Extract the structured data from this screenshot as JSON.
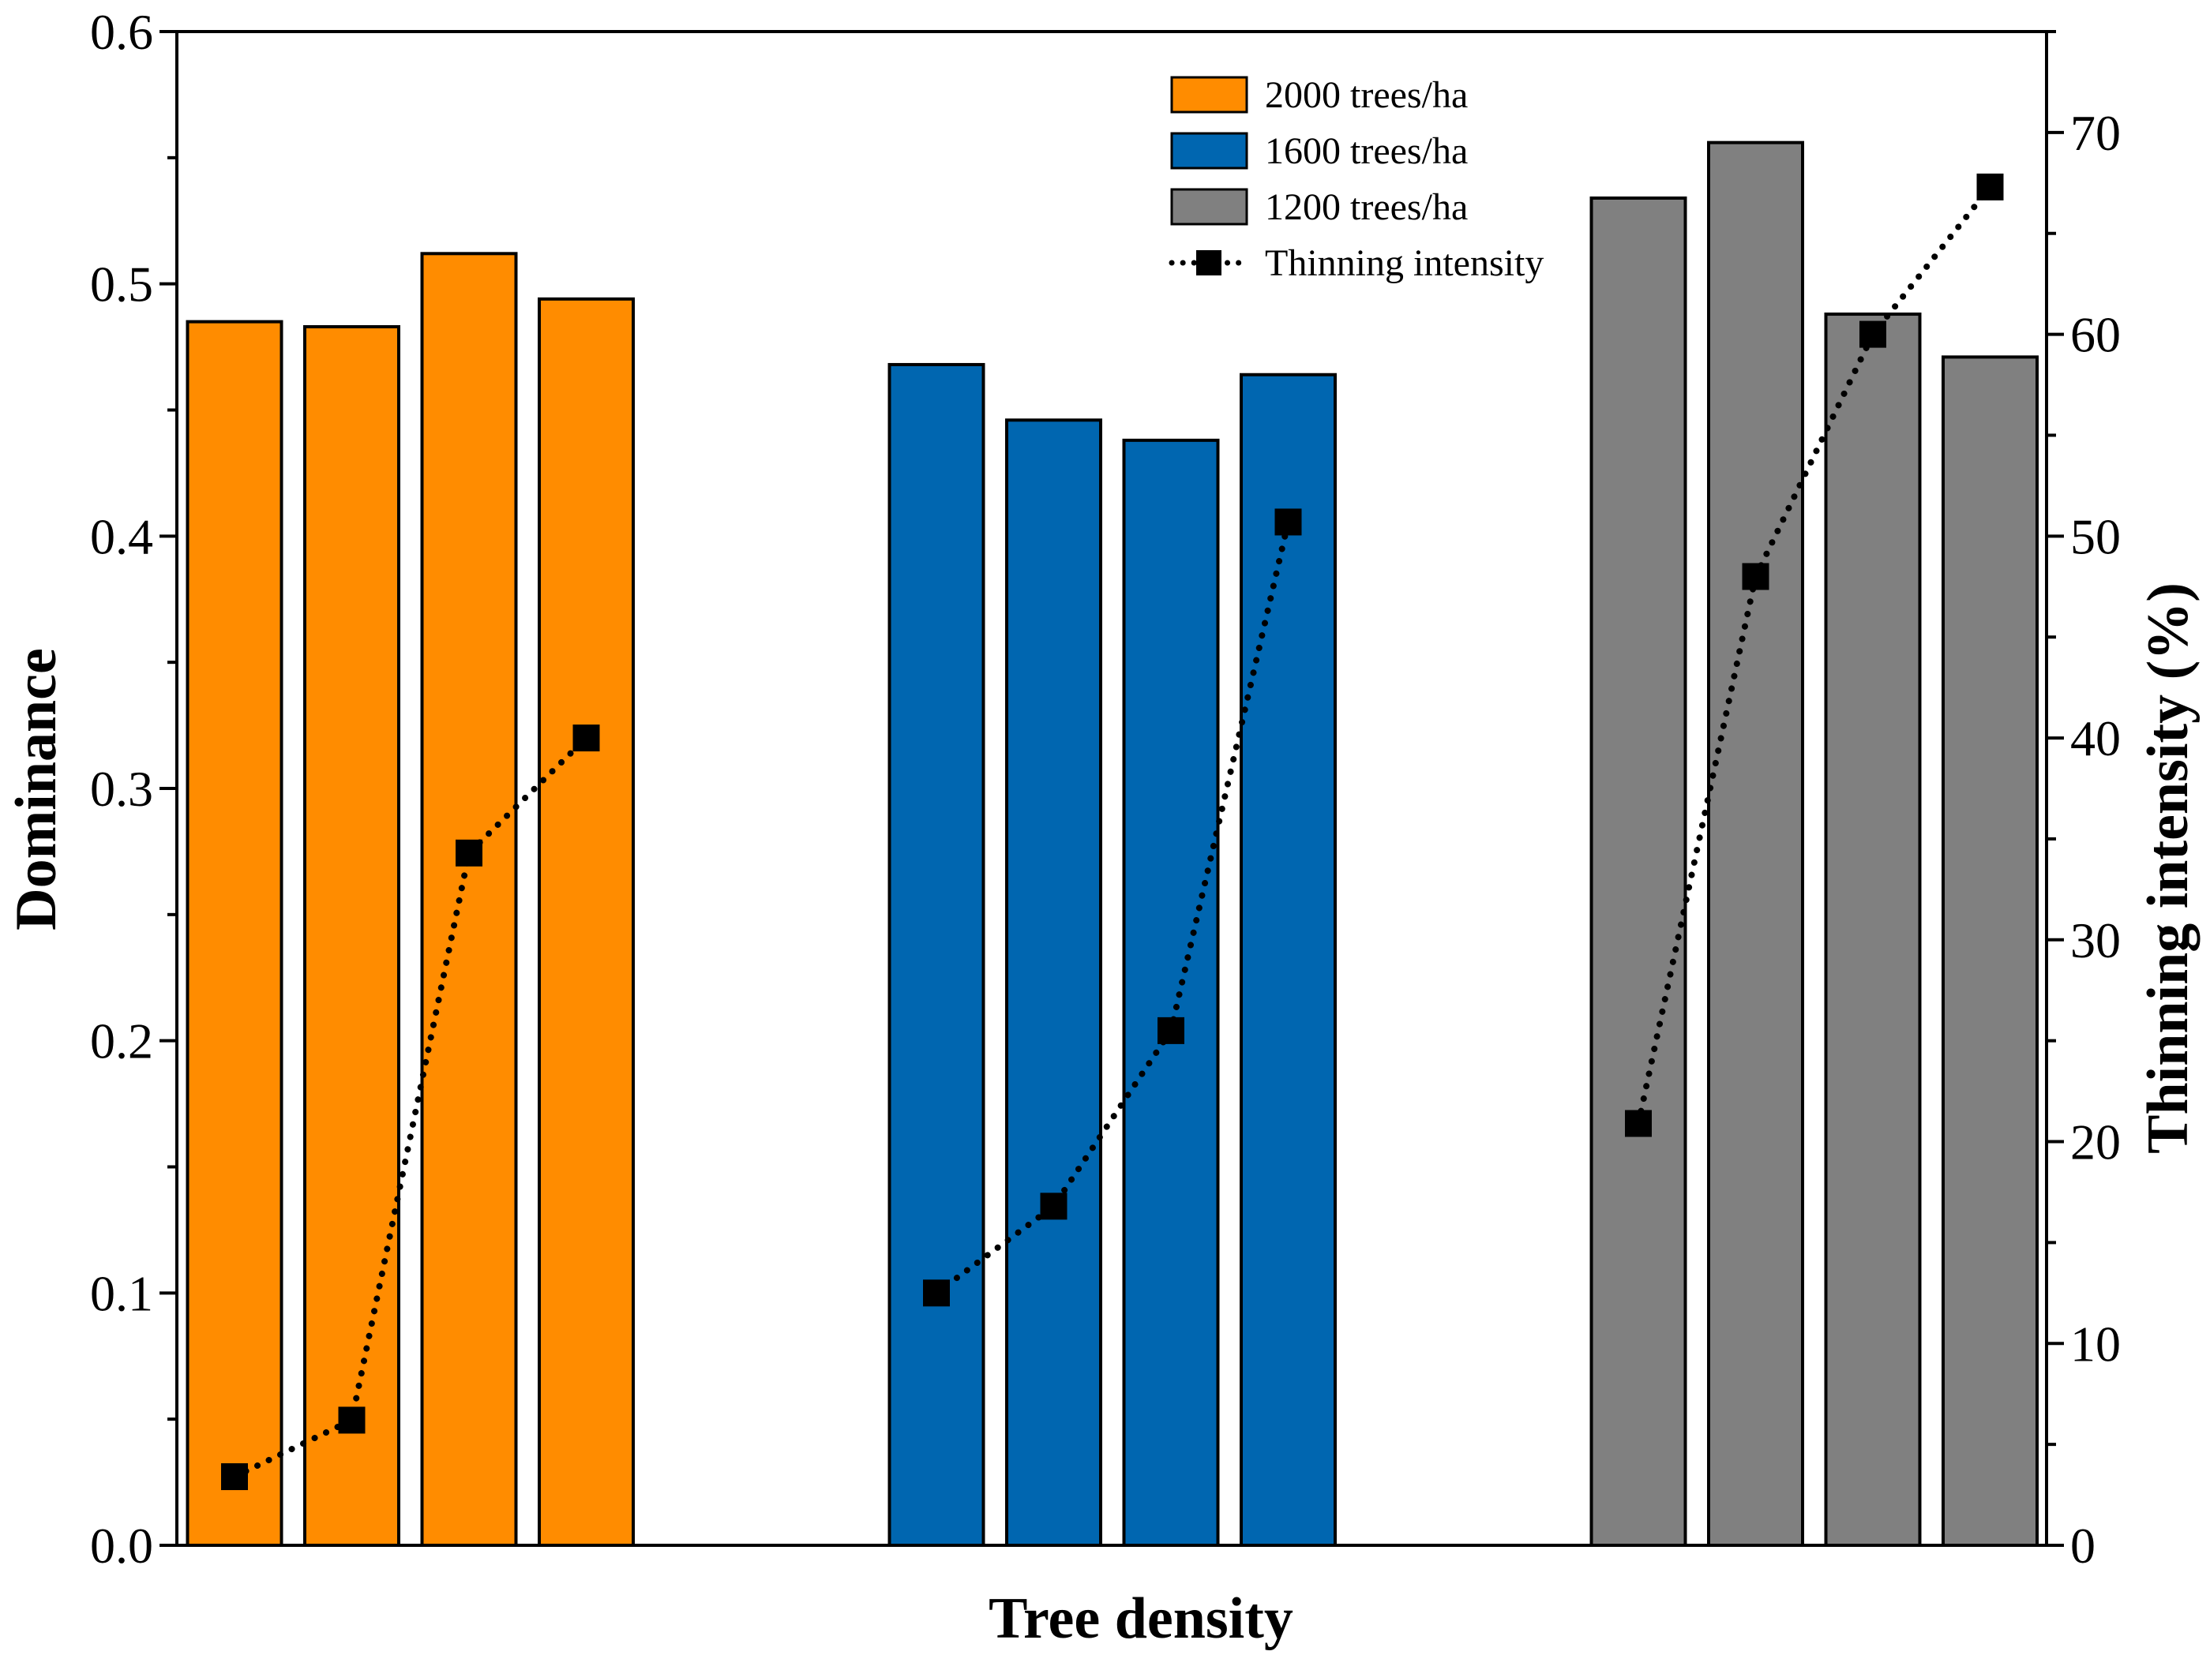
{
  "chart_data": {
    "type": "bar",
    "title": "",
    "xlabel": "Tree density",
    "ylabel": "Dominance",
    "y2label": "Thinning intensity (%)",
    "ylim": [
      0,
      0.6
    ],
    "y2lim": [
      0,
      75
    ],
    "yticks": [
      "0.0",
      "0.1",
      "0.2",
      "0.3",
      "0.4",
      "0.5",
      "0.6"
    ],
    "y2ticks": [
      "0",
      "10",
      "20",
      "30",
      "40",
      "50",
      "60",
      "70"
    ],
    "legend_position": "top-right",
    "series": [
      {
        "name": "2000 trees/ha",
        "color": "#FF8C00",
        "values": [
          0.485,
          0.483,
          0.512,
          0.494
        ]
      },
      {
        "name": "1600 trees/ha",
        "color": "#0066B0",
        "values": [
          0.468,
          0.446,
          0.438,
          0.464
        ]
      },
      {
        "name": "1200 trees/ha",
        "color": "#808080",
        "values": [
          0.534,
          0.556,
          0.488,
          0.471
        ]
      }
    ],
    "line_series": {
      "name": "Thinning intensity",
      "color": "#000000",
      "groups": [
        [
          3.4,
          6.2,
          34.3,
          40.0
        ],
        [
          12.5,
          16.8,
          25.5,
          50.7
        ],
        [
          20.9,
          48.0,
          60.0,
          67.3
        ]
      ]
    }
  }
}
